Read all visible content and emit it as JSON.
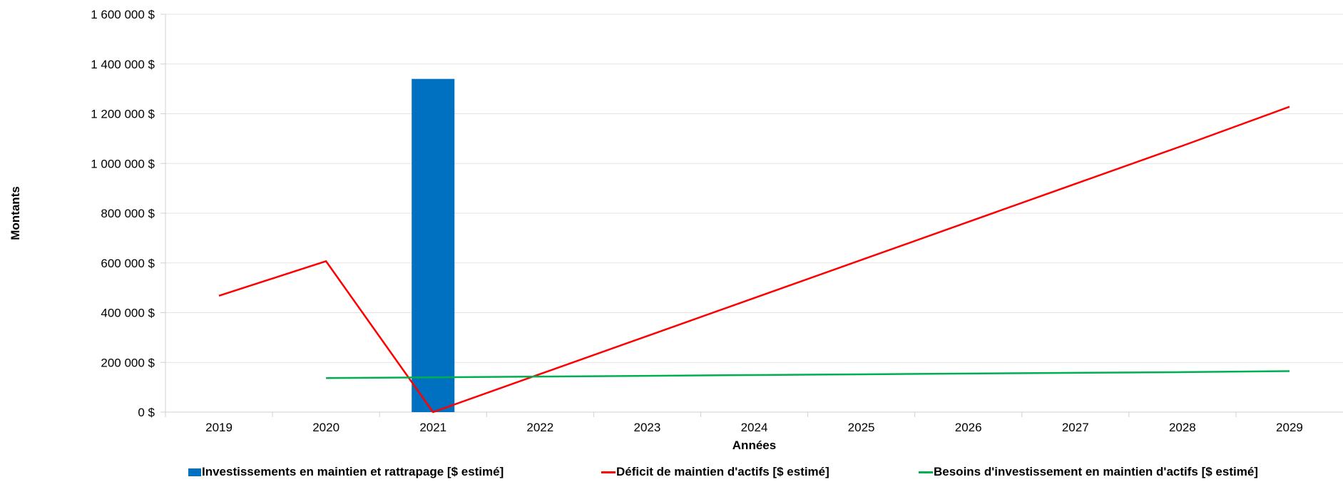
{
  "chart_data": {
    "type": "bar",
    "categories": [
      "2019",
      "2020",
      "2021",
      "2022",
      "2023",
      "2024",
      "2025",
      "2026",
      "2027",
      "2028",
      "2029"
    ],
    "ylim": [
      0,
      1600000
    ],
    "y_ticks": [
      0,
      200000,
      400000,
      600000,
      800000,
      1000000,
      1200000,
      1400000,
      1600000
    ],
    "y_tick_labels": [
      "0 $",
      "200 000 $",
      "400 000 $",
      "600 000 $",
      "800 000 $",
      "1 000 000 $",
      "1 200 000 $",
      "1 400 000 $",
      "1 600 000 $"
    ],
    "xlabel": "Années",
    "ylabel": "Montants",
    "grid": "horizontal",
    "legend_position": "bottom",
    "series": [
      {
        "name": "Investissements en maintien et rattrapage [$ estimé]",
        "kind": "bar",
        "color": "#0070C0",
        "values": [
          null,
          null,
          1340000,
          null,
          null,
          null,
          null,
          null,
          null,
          null,
          null
        ]
      },
      {
        "name": "Déficit de maintien d'actifs [$ estimé]",
        "kind": "line",
        "color": "#FF0000",
        "values": [
          468000,
          607000,
          0,
          153000,
          306000,
          459000,
          612000,
          765000,
          918000,
          1071000,
          1228000
        ]
      },
      {
        "name": "Besoins d'investissement en maintien d'actifs [$ estimé]",
        "kind": "line",
        "color": "#00B050",
        "values": [
          null,
          137000,
          140000,
          143000,
          146000,
          149000,
          152000,
          155000,
          158000,
          161000,
          165000
        ]
      }
    ]
  }
}
